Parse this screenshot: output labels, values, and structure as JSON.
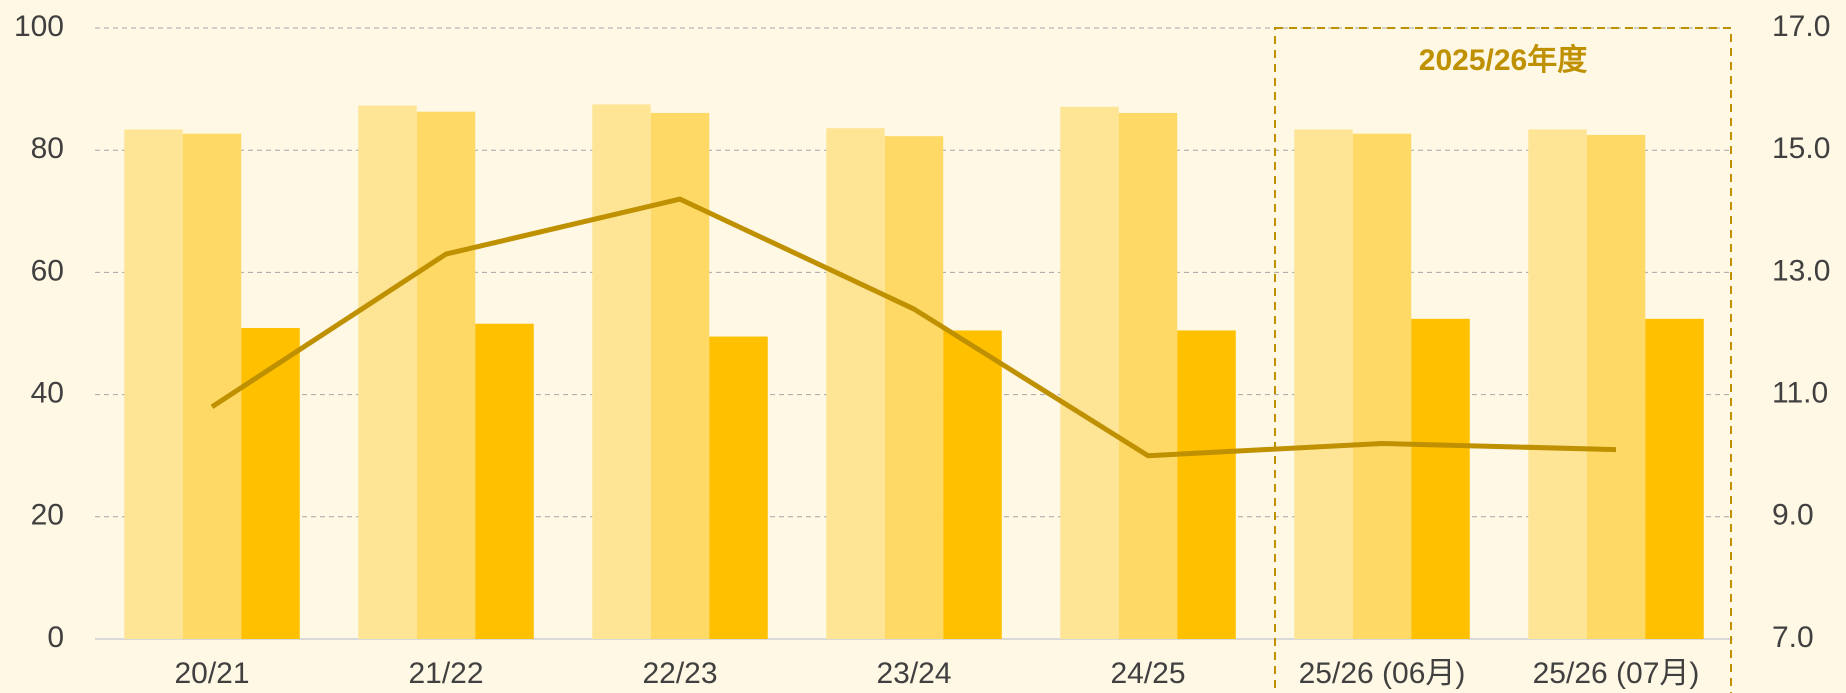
{
  "chart_data": {
    "type": "bar",
    "categories": [
      "20/21",
      "21/22",
      "22/23",
      "23/24",
      "24/25",
      "25/26 (06月)",
      "25/26 (07月)"
    ],
    "series": [
      {
        "color": "#fee596",
        "values": [
          83.4,
          87.3,
          87.5,
          83.6,
          87.1,
          83.4,
          83.4
        ]
      },
      {
        "color": "#fed966",
        "values": [
          82.7,
          86.3,
          86.1,
          82.3,
          86.1,
          82.7,
          82.5
        ]
      },
      {
        "color": "#ffc000",
        "values": [
          50.9,
          51.6,
          49.5,
          50.5,
          50.5,
          52.4,
          52.4
        ]
      },
      {
        "type": "line",
        "axis": "y2",
        "color": "#bf9000",
        "values": [
          10.8,
          13.3,
          14.2,
          12.4,
          10.0,
          10.2,
          10.1
        ]
      }
    ],
    "ylim": [
      0,
      100
    ],
    "yticks": [
      0,
      20,
      40,
      60,
      80,
      100
    ],
    "y2lim": [
      7,
      17
    ],
    "y2ticks": [
      {
        "value": 7,
        "label": "7.0"
      },
      {
        "value": 9,
        "label": "9.0"
      },
      {
        "value": 11,
        "label": "11.0"
      },
      {
        "value": 13,
        "label": "13.0"
      },
      {
        "value": 15,
        "label": "15.0"
      },
      {
        "value": 17,
        "label": "17.0"
      }
    ],
    "grid": true,
    "annotation": {
      "text": "2025/26年度",
      "categories": [
        5,
        6
      ]
    }
  }
}
